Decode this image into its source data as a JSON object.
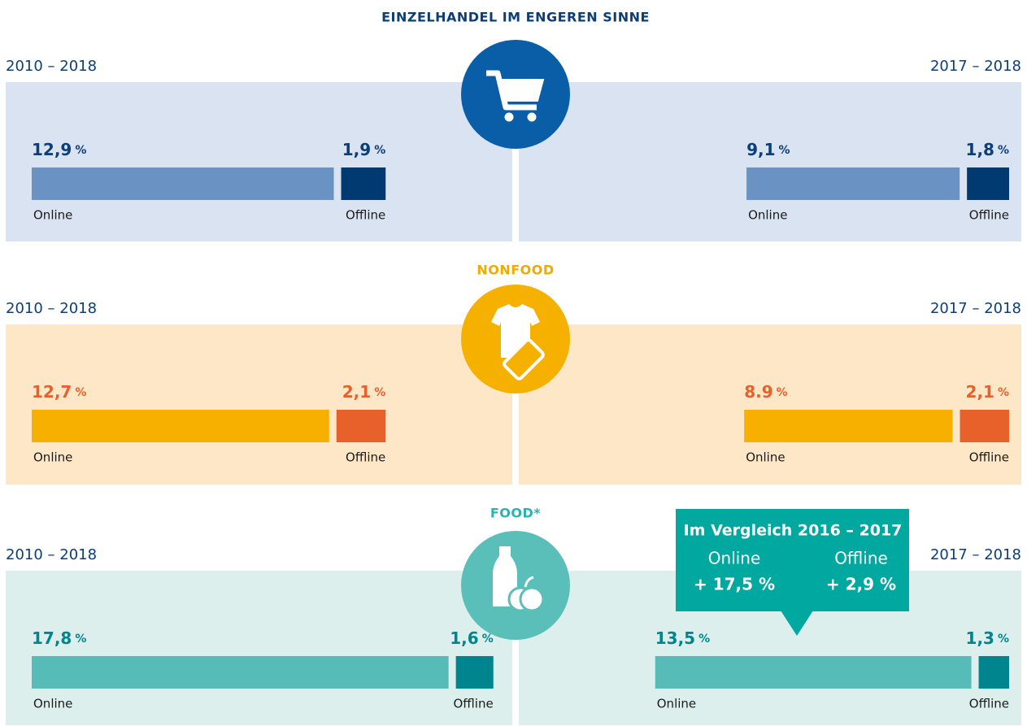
{
  "sections": [
    {
      "title": "EINZELHANDEL IM ENGEREN SINNE",
      "color": "#0d3e75",
      "panel_color": "#d9e3f1",
      "icon_color": "#0a5ea8"
    },
    {
      "title": "NONFOOD",
      "color": "#f0aa00",
      "panel_color": "#fde7c6",
      "icon_color": "#f6b000"
    },
    {
      "title": "FOOD*",
      "color": "#2ab4ad",
      "panel_color": "#dcefec",
      "icon_color": "#5bbfb9"
    }
  ],
  "chart_data": [
    {
      "type": "bar",
      "title": "2010 – 2018",
      "categories": [
        "Online",
        "Offline"
      ],
      "values": [
        12.9,
        1.9
      ],
      "value_labels": [
        "12,9",
        "1,9"
      ],
      "unit": "%",
      "colors": [
        "#6a93c3",
        "#003a70"
      ],
      "label_color": "#0d3e75"
    },
    {
      "type": "bar",
      "title": "2017 – 2018",
      "categories": [
        "Online",
        "Offline"
      ],
      "values": [
        9.1,
        1.8
      ],
      "value_labels": [
        "9,1",
        "1,8"
      ],
      "unit": "%",
      "colors": [
        "#6a93c3",
        "#003a70"
      ],
      "label_color": "#0d3e75"
    },
    {
      "type": "bar",
      "title": "2010 – 2018",
      "categories": [
        "Online",
        "Offline"
      ],
      "values": [
        12.7,
        2.1
      ],
      "value_labels": [
        "12,7",
        "2,1"
      ],
      "unit": "%",
      "colors": [
        "#f7b000",
        "#e8602a"
      ],
      "label_color": "#e8602a"
    },
    {
      "type": "bar",
      "title": "2017 – 2018",
      "categories": [
        "Online",
        "Offline"
      ],
      "values": [
        8.9,
        2.1
      ],
      "value_labels": [
        "8.9",
        "2,1"
      ],
      "unit": "%",
      "colors": [
        "#f7b000",
        "#e8602a"
      ],
      "label_color": "#e8602a"
    },
    {
      "type": "bar",
      "title": "2010 – 2018",
      "categories": [
        "Online",
        "Offline"
      ],
      "values": [
        17.8,
        1.6
      ],
      "value_labels": [
        "17,8",
        "1,6"
      ],
      "unit": "%",
      "colors": [
        "#57bcb7",
        "#00858e"
      ],
      "label_color": "#00858e"
    },
    {
      "type": "bar",
      "title": "2017 – 2018",
      "categories": [
        "Online",
        "Offline"
      ],
      "values": [
        13.5,
        1.3
      ],
      "value_labels": [
        "13,5",
        "1,3"
      ],
      "unit": "%",
      "colors": [
        "#57bcb7",
        "#00858e"
      ],
      "label_color": "#00858e"
    }
  ],
  "callout": {
    "title": "Im Vergleich 2016 – 2017",
    "headers": [
      "Online",
      "Offline"
    ],
    "values": [
      "+ 17,5 %",
      "+ 2,9 %"
    ]
  }
}
